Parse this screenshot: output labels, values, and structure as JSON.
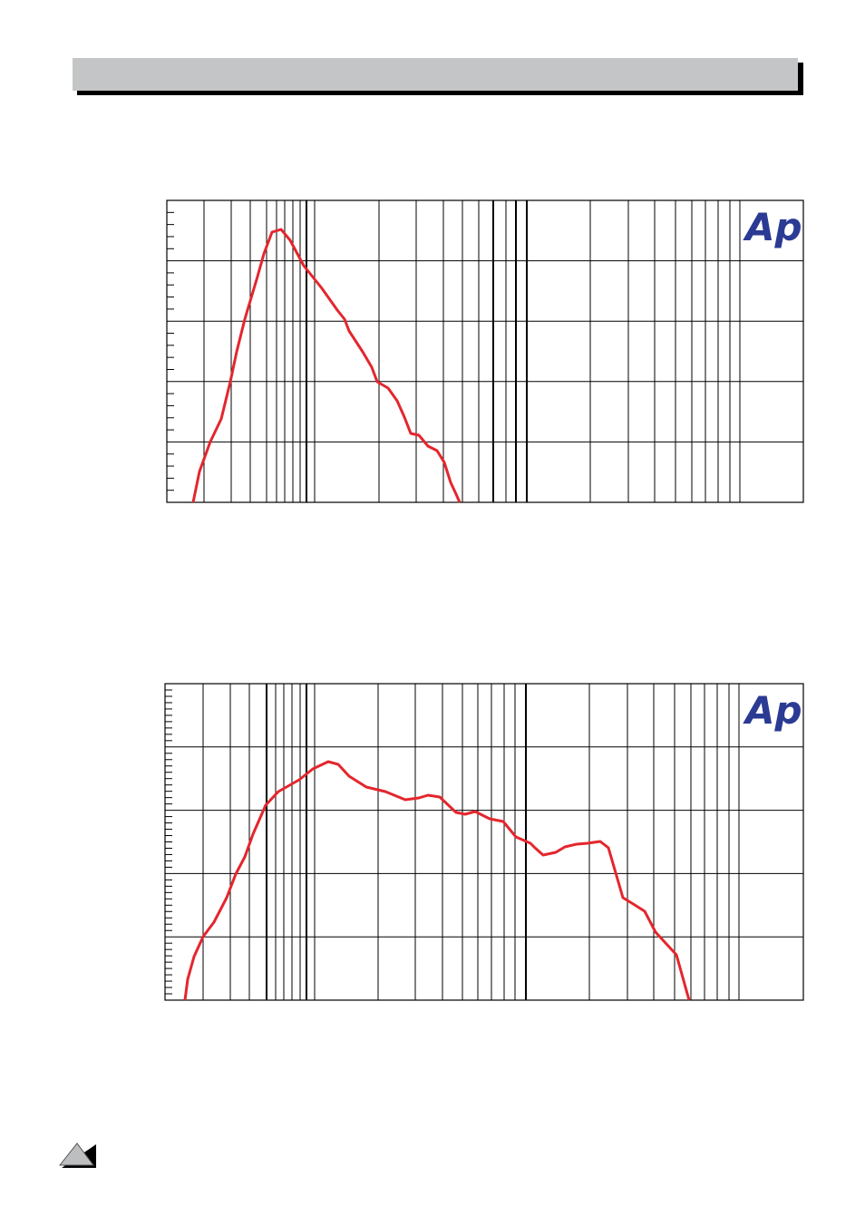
{
  "charts": [
    {
      "logo": "Ap"
    },
    {
      "logo": "Ap"
    }
  ]
}
